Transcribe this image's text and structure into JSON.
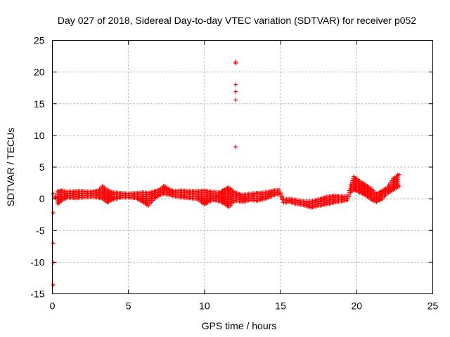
{
  "chart_data": {
    "type": "scatter",
    "title": "Day 027 of 2018, Sidereal Day-to-day VTEC variation (SDTVAR) for receiver p052",
    "xlabel": "GPS time / hours",
    "ylabel": "SDTVAR / TECUs",
    "xlim": [
      0,
      25
    ],
    "ylim": [
      -15,
      25
    ],
    "xticks": [
      0,
      5,
      10,
      15,
      20,
      25
    ],
    "yticks": [
      -15,
      -10,
      -5,
      0,
      5,
      10,
      15,
      20,
      25
    ],
    "grid": true,
    "marker": "+",
    "color": "#ff0000",
    "series": [
      {
        "name": "SDTVAR",
        "band": [
          [
            0.2,
            0.1,
            0.4
          ],
          [
            0.35,
            -0.8,
            1.2
          ],
          [
            0.6,
            -0.3,
            1.3
          ],
          [
            1.0,
            0.2,
            1.1
          ],
          [
            1.5,
            0.1,
            1.2
          ],
          [
            2.0,
            0.2,
            1.2
          ],
          [
            2.5,
            0.3,
            1.1
          ],
          [
            3.0,
            0.2,
            1.3
          ],
          [
            3.3,
            0.0,
            2.0
          ],
          [
            3.6,
            -0.6,
            1.4
          ],
          [
            4.0,
            -0.1,
            1.0
          ],
          [
            4.5,
            0.2,
            0.9
          ],
          [
            5.0,
            0.2,
            0.8
          ],
          [
            5.5,
            0.1,
            0.9
          ],
          [
            6.0,
            -0.6,
            1.0
          ],
          [
            6.3,
            -1.1,
            0.9
          ],
          [
            6.7,
            0.0,
            1.2
          ],
          [
            7.0,
            0.5,
            1.4
          ],
          [
            7.3,
            0.8,
            2.0
          ],
          [
            7.7,
            0.6,
            1.5
          ],
          [
            8.0,
            0.4,
            1.2
          ],
          [
            8.5,
            0.2,
            1.3
          ],
          [
            9.0,
            0.1,
            1.2
          ],
          [
            9.5,
            0.0,
            1.2
          ],
          [
            10.0,
            -0.9,
            1.3
          ],
          [
            10.5,
            -0.2,
            1.1
          ],
          [
            11.0,
            -0.4,
            1.0
          ],
          [
            11.3,
            -0.8,
            1.5
          ],
          [
            11.6,
            -1.3,
            1.8
          ],
          [
            12.0,
            -0.3,
            1.0
          ],
          [
            12.5,
            -0.5,
            0.6
          ],
          [
            13.0,
            -0.2,
            0.8
          ],
          [
            13.5,
            -0.3,
            0.9
          ],
          [
            14.0,
            0.0,
            1.0
          ],
          [
            14.5,
            0.5,
            1.3
          ],
          [
            14.9,
            0.8,
            1.4
          ],
          [
            15.2,
            -0.6,
            -0.1
          ],
          [
            15.6,
            -0.5,
            0.0
          ],
          [
            16.0,
            -0.8,
            -0.2
          ],
          [
            16.5,
            -1.0,
            -0.4
          ],
          [
            17.0,
            -1.4,
            -0.4
          ],
          [
            17.5,
            -1.1,
            -0.1
          ],
          [
            18.0,
            -0.9,
            0.3
          ],
          [
            18.5,
            -0.6,
            0.5
          ],
          [
            19.0,
            -0.4,
            0.4
          ],
          [
            19.4,
            -0.2,
            0.4
          ],
          [
            19.6,
            1.0,
            2.2
          ],
          [
            19.8,
            1.4,
            3.5
          ],
          [
            20.2,
            1.0,
            2.8
          ],
          [
            20.6,
            0.5,
            2.2
          ],
          [
            21.0,
            -0.2,
            1.5
          ],
          [
            21.3,
            -0.5,
            0.8
          ],
          [
            21.7,
            0.0,
            1.3
          ],
          [
            22.0,
            0.8,
            1.8
          ],
          [
            22.4,
            1.4,
            3.2
          ],
          [
            22.8,
            2.0,
            3.8
          ]
        ],
        "outliers": [
          [
            0.05,
            -2.2
          ],
          [
            0.05,
            -7.0
          ],
          [
            0.05,
            -10.1
          ],
          [
            0.05,
            -13.6
          ],
          [
            0.05,
            0.8
          ],
          [
            12.05,
            21.4
          ],
          [
            12.05,
            21.6
          ],
          [
            12.05,
            18.0
          ],
          [
            12.05,
            16.9
          ],
          [
            12.05,
            15.6
          ],
          [
            12.05,
            8.2
          ],
          [
            3.3,
            2.0
          ],
          [
            7.4,
            2.0
          ],
          [
            20.0,
            3.2
          ],
          [
            22.7,
            3.8
          ]
        ]
      }
    ]
  }
}
